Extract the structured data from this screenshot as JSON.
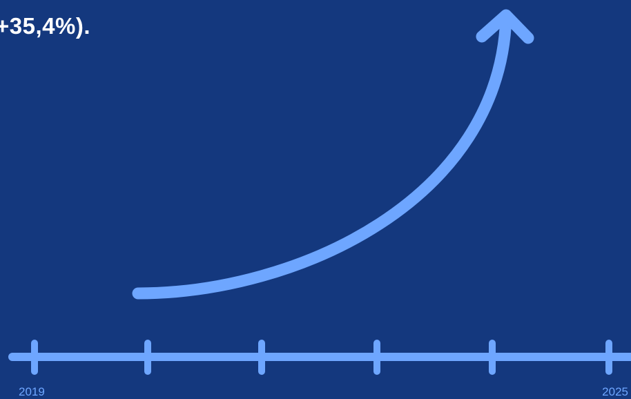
{
  "headline": "+35,4%).",
  "timeline": {
    "start_year": "2019",
    "end_year": "2025"
  },
  "colors": {
    "background": "#14387e",
    "accent": "#6ea6ff",
    "headline_text": "#ffffff"
  },
  "icons": {
    "growth_curve": "upward-curved-arrow-icon"
  }
}
